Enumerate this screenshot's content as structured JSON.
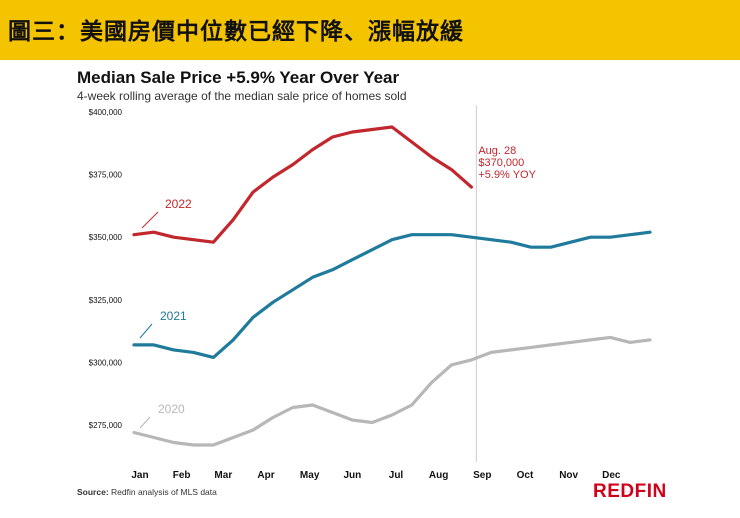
{
  "header": {
    "title": "圖三：美國房價中位數已經下降、漲幅放緩"
  },
  "chart_data": {
    "type": "line",
    "title": "Median Sale Price +5.9% Year Over Year",
    "subtitle": "4-week rolling average of the median sale price of homes sold",
    "xlabel": "",
    "ylabel": "",
    "x_ticks": [
      "Jan",
      "Feb",
      "Mar",
      "Apr",
      "May",
      "Jun",
      "Jul",
      "Aug",
      "Sep",
      "Oct",
      "Nov",
      "Dec"
    ],
    "y_ticks": [
      275000,
      300000,
      325000,
      350000,
      375000,
      400000
    ],
    "y_tick_labels": [
      "$275,000",
      "$300,000",
      "$325,000",
      "$350,000",
      "$375,000",
      "$400,000"
    ],
    "ylim": [
      275000,
      400000
    ],
    "x_unit": "week of year (0 = start of Jan, 52 = end of Dec)",
    "xlim": [
      0,
      52
    ],
    "grid": false,
    "series": [
      {
        "name": "2020",
        "label": "2020",
        "color": "#b7b7b7",
        "weeks": [
          0,
          2,
          4,
          6,
          8,
          10,
          12,
          14,
          16,
          18,
          20,
          22,
          24,
          26,
          28,
          30,
          32,
          34,
          36,
          38,
          40,
          42,
          44,
          46,
          48,
          50,
          52
        ],
        "values": [
          272000,
          270000,
          268000,
          267000,
          267000,
          270000,
          273000,
          278000,
          282000,
          283000,
          280000,
          277000,
          276000,
          279000,
          283000,
          292000,
          299000,
          301000,
          304000,
          305000,
          306000,
          307000,
          308000,
          309000,
          310000,
          308000,
          309000
        ]
      },
      {
        "name": "2021",
        "label": "2021",
        "color": "#1f7a9c",
        "weeks": [
          0,
          2,
          4,
          6,
          8,
          10,
          12,
          14,
          16,
          18,
          20,
          22,
          24,
          26,
          28,
          30,
          32,
          34,
          36,
          38,
          40,
          42,
          44,
          46,
          48,
          50,
          52
        ],
        "values": [
          307000,
          307000,
          305000,
          304000,
          302000,
          309000,
          318000,
          324000,
          329000,
          334000,
          337000,
          341000,
          345000,
          349000,
          351000,
          351000,
          351000,
          350000,
          349000,
          348000,
          346000,
          346000,
          348000,
          350000,
          350000,
          351000,
          352000
        ]
      },
      {
        "name": "2022",
        "label": "2022",
        "color": "#c1272d",
        "weeks": [
          0,
          2,
          4,
          6,
          8,
          10,
          12,
          14,
          16,
          18,
          20,
          22,
          24,
          26,
          28,
          30,
          32,
          34
        ],
        "values": [
          351000,
          352000,
          350000,
          349000,
          348000,
          357000,
          368000,
          374000,
          379000,
          385000,
          390000,
          392000,
          393000,
          394000,
          388000,
          382000,
          377000,
          370000
        ]
      }
    ],
    "marker_week": 34.5,
    "annotation": {
      "lines": [
        "Aug. 28",
        "$370,000",
        "+5.9% YOY"
      ],
      "color": "#c1272d"
    }
  },
  "footer": {
    "source_label": "Source:",
    "source_text": "Redfin analysis of MLS data",
    "brand": "REDFIN"
  },
  "colors": {
    "frame": "#f5c400",
    "axis_text": "#111111",
    "marker_line": "#cccccc"
  }
}
